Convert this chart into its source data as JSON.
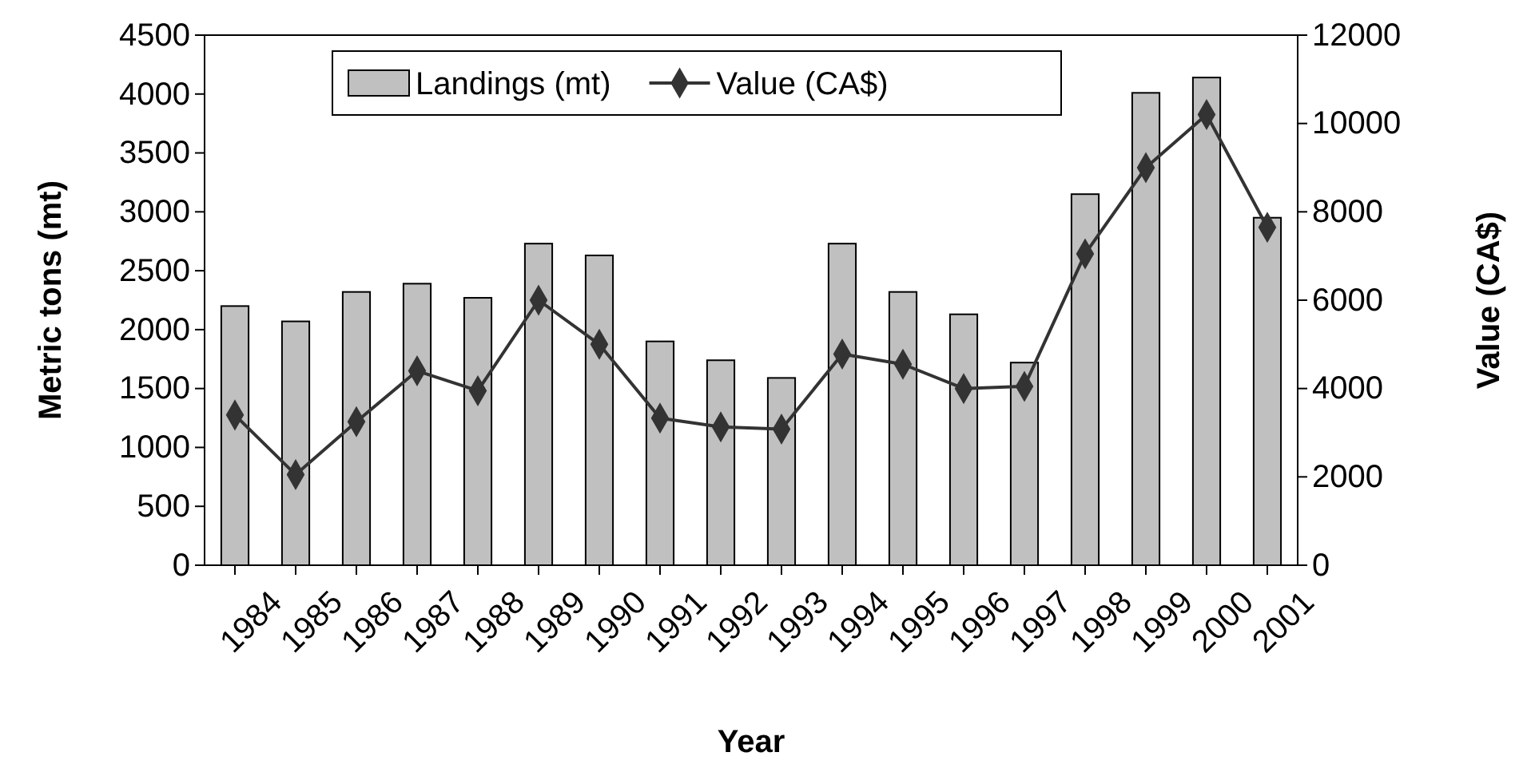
{
  "chart_data": {
    "type": "bar",
    "xlabel": "Year",
    "ylabel": "Metric tons (mt)",
    "y2label": "Value (CA$)",
    "categories": [
      "1984",
      "1985",
      "1986",
      "1987",
      "1988",
      "1989",
      "1990",
      "1991",
      "1992",
      "1993",
      "1994",
      "1995",
      "1996",
      "1997",
      "1998",
      "1999",
      "2000",
      "2001"
    ],
    "series": [
      {
        "name": "Landings (mt)",
        "color": "#c0c0c0",
        "values": [
          2200,
          2070,
          2320,
          2390,
          2270,
          2730,
          2630,
          1900,
          1740,
          1590,
          2730,
          2320,
          2130,
          1720,
          3150,
          4010,
          4140,
          2950
        ]
      },
      {
        "name": "Value (CA$)",
        "type": "line",
        "axis": "y2",
        "color": "#333333",
        "marker": "diamond",
        "values": [
          3400,
          2050,
          3250,
          4400,
          3950,
          6000,
          5000,
          3330,
          3130,
          3080,
          4780,
          4550,
          4000,
          4050,
          7050,
          9000,
          10200,
          7650
        ]
      }
    ],
    "ylim": [
      0,
      4500
    ],
    "yticks": [
      0,
      500,
      1000,
      1500,
      2000,
      2500,
      3000,
      3500,
      4000,
      4500
    ],
    "y2lim": [
      0,
      12000
    ],
    "y2ticks": [
      0,
      2000,
      4000,
      6000,
      8000,
      10000,
      12000
    ],
    "legend": "top",
    "grid": false
  }
}
